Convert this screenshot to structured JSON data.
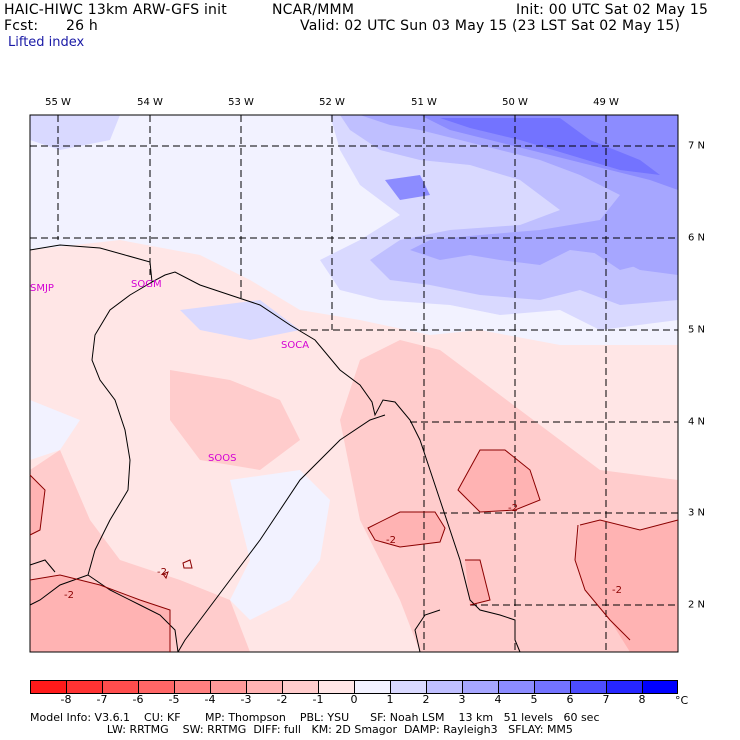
{
  "header": {
    "model": "HAIC-HIWC 13km ARW-GFS init",
    "org": "NCAR/MMM",
    "init": "Init: 00 UTC Sat 02 May 15",
    "fcst_label": "Fcst:",
    "fcst_value": "26 h",
    "valid": "Valid: 02 UTC Sun 03 May 15 (23 LST Sat 02 May 15)",
    "field": "Lifted index"
  },
  "map": {
    "lon_labels": [
      "55 W",
      "54 W",
      "53 W",
      "52 W",
      "51 W",
      "50 W",
      "49 W"
    ],
    "lat_labels": [
      "7 N",
      "6 N",
      "5 N",
      "4 N",
      "3 N",
      "2 N"
    ],
    "stations": [
      "SMJP",
      "SOGM",
      "SOCA",
      "SOOS"
    ],
    "contour_labels": [
      "-2",
      "-2",
      "-2",
      "-2",
      "-2"
    ]
  },
  "colorbar": {
    "ticks": [
      "-8",
      "-7",
      "-6",
      "-5",
      "-4",
      "-3",
      "-2",
      "-1",
      "0",
      "1",
      "2",
      "3",
      "4",
      "5",
      "6",
      "7",
      "8"
    ],
    "unit": "°C",
    "colors": [
      "#ff1a1a",
      "#ff3333",
      "#ff4d4d",
      "#ff6666",
      "#ff8080",
      "#ff9999",
      "#ffb3b3",
      "#ffcccc",
      "#ffe6e6",
      "#f2f2ff",
      "#d9d9ff",
      "#bfbfff",
      "#a6a6ff",
      "#8c8cff",
      "#7373ff",
      "#4d4dff",
      "#2626ff",
      "#0000ff"
    ]
  },
  "footer": {
    "line1": "Model Info: V3.6.1    CU: KF       MP: Thompson    PBL: YSU      SF: Noah LSM    13 km   51 levels   60 sec",
    "line2": "                      LW: RRTMG    SW: RRTMG  DIFF: full   KM: 2D Smagor  DAMP: Rayleigh3   SFLAY: MM5"
  }
}
